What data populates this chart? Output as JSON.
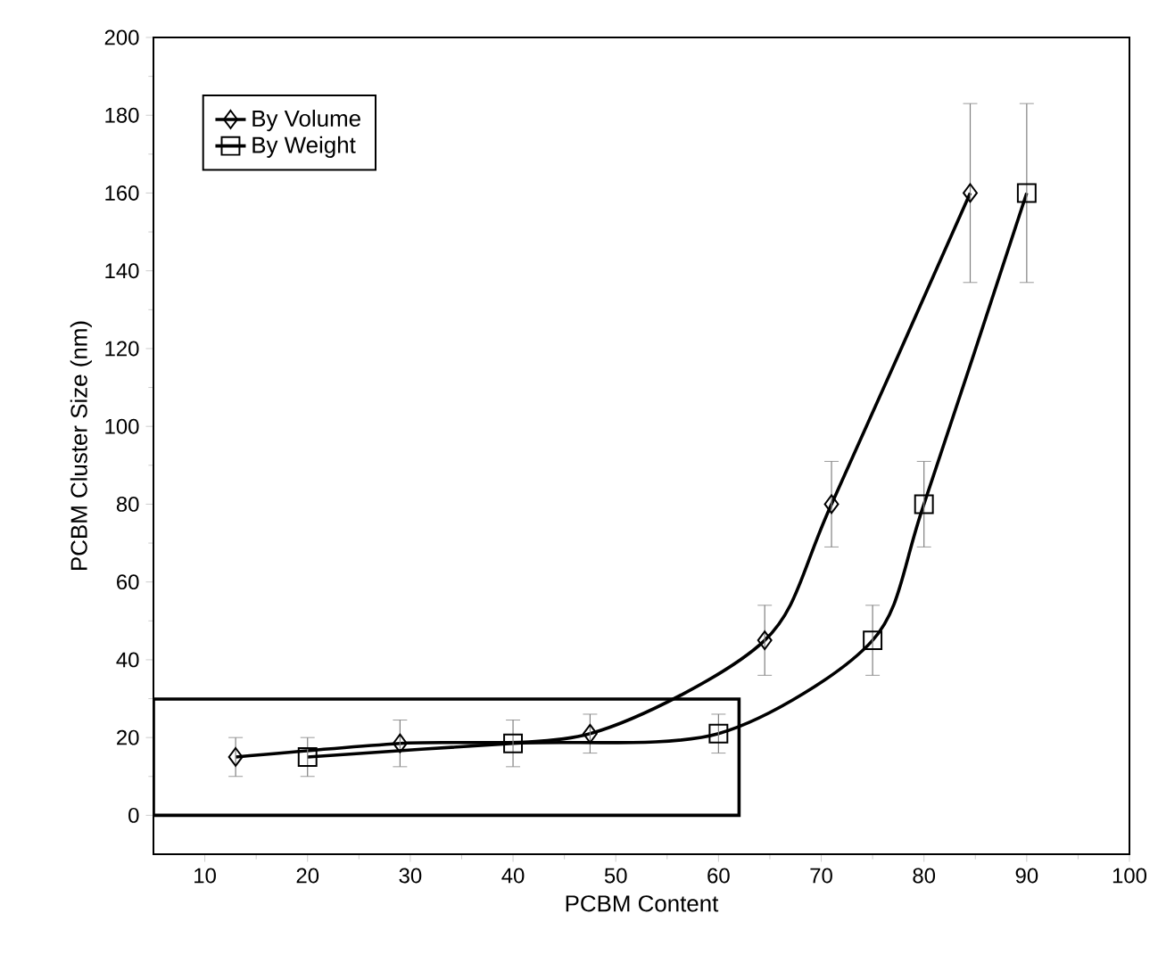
{
  "chart_data": {
    "type": "line",
    "xlabel": "PCBM Content",
    "ylabel": "PCBM Cluster Size (nm)",
    "xlim": [
      5,
      100
    ],
    "xticks": [
      10,
      20,
      30,
      40,
      50,
      60,
      70,
      80,
      90,
      100
    ],
    "ylim": [
      -10,
      200
    ],
    "yticks": [
      0,
      20,
      40,
      60,
      80,
      100,
      120,
      140,
      160,
      180,
      200
    ],
    "grid": false,
    "legend": "top left",
    "series": [
      {
        "name": "By Volume",
        "color": "#000000",
        "marker": "diamond",
        "x": [
          13,
          29,
          47.5,
          64.5,
          71,
          84.5
        ],
        "values": [
          15,
          18.5,
          21,
          45,
          80,
          160
        ],
        "errors": [
          5,
          6,
          5,
          9,
          11,
          23
        ]
      },
      {
        "name": "By Weight",
        "color": "#000000",
        "marker": "square",
        "x": [
          20,
          40,
          60,
          75,
          80,
          90
        ],
        "values": [
          15,
          18.5,
          21,
          45,
          80,
          160
        ],
        "errors": [
          5,
          6,
          5,
          9,
          11,
          23
        ]
      }
    ]
  }
}
